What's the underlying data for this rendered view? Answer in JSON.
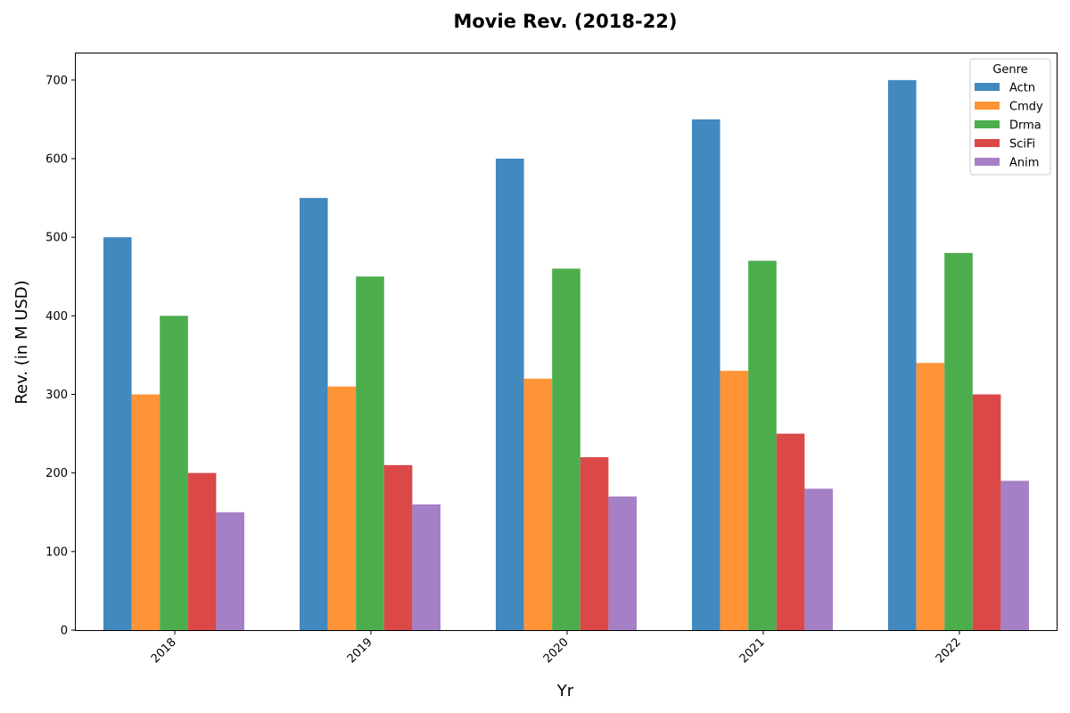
{
  "chart_data": {
    "type": "bar",
    "title": "Movie Rev. (2018-22)",
    "xlabel": "Yr",
    "ylabel": "Rev. (in M USD)",
    "categories": [
      "2018",
      "2019",
      "2020",
      "2021",
      "2022"
    ],
    "ylim": [
      0,
      735
    ],
    "yticks": [
      0,
      100,
      200,
      300,
      400,
      500,
      600,
      700
    ],
    "grid": false,
    "legend": {
      "title": "Genre",
      "placement": "top-right"
    },
    "series": [
      {
        "name": "Actn",
        "color": "#4289c0",
        "values": [
          500,
          550,
          600,
          650,
          700
        ]
      },
      {
        "name": "Cmdy",
        "color": "#ff9436",
        "values": [
          300,
          310,
          320,
          330,
          340
        ]
      },
      {
        "name": "Drma",
        "color": "#4cad4c",
        "values": [
          400,
          450,
          460,
          470,
          480
        ]
      },
      {
        "name": "SciFi",
        "color": "#db4848",
        "values": [
          200,
          210,
          220,
          250,
          300
        ]
      },
      {
        "name": "Anim",
        "color": "#a580c6",
        "values": [
          150,
          160,
          170,
          180,
          190
        ]
      }
    ]
  }
}
